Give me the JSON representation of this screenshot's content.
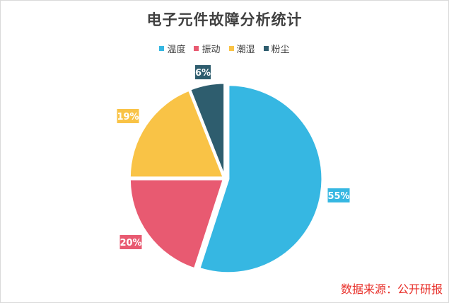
{
  "chart_data": {
    "type": "pie",
    "title": "电子元件故障分析统计",
    "categories": [
      "温度",
      "振动",
      "潮湿",
      "粉尘"
    ],
    "values": [
      55,
      20,
      19,
      6
    ],
    "labels": [
      "55%",
      "20%",
      "19%",
      "6%"
    ],
    "colors": [
      "#36b7e2",
      "#e85a71",
      "#f9c346",
      "#2e5d6e"
    ],
    "legend_position": "top"
  },
  "source": "数据来源：公开研报"
}
